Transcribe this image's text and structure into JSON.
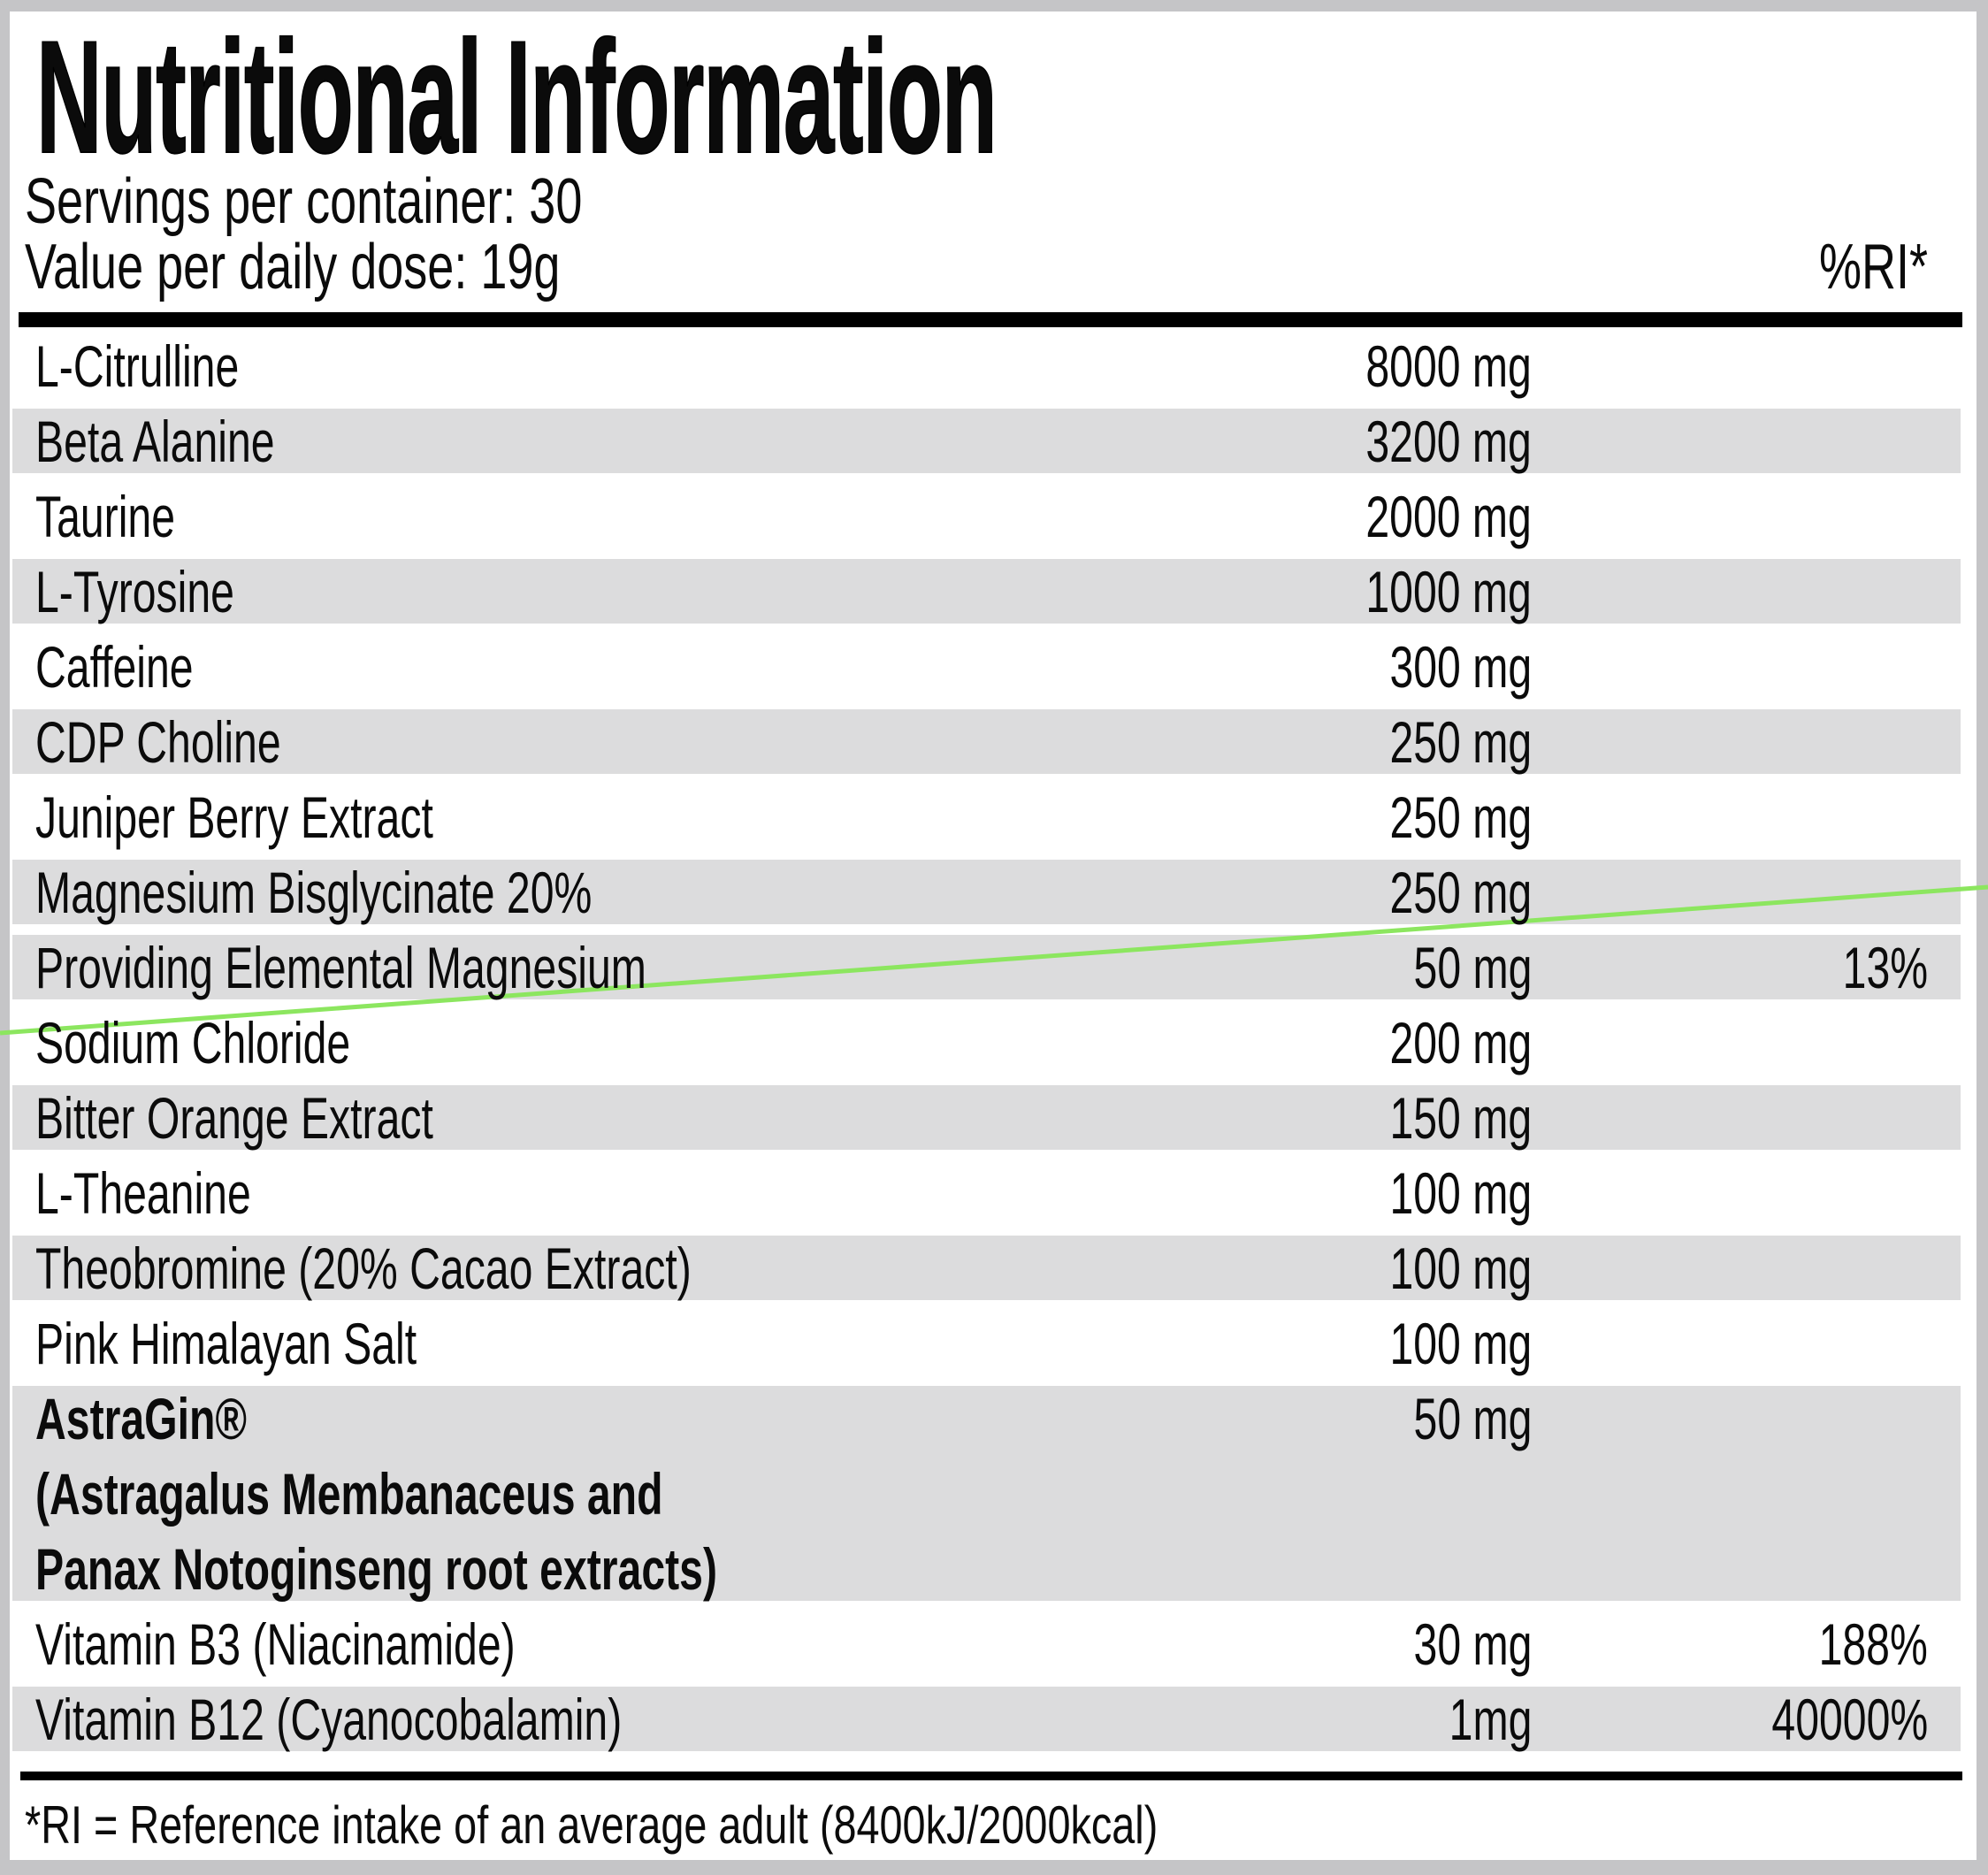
{
  "label": {
    "title": "Nutritional Information",
    "servings_line": "Servings per container: 30",
    "dose_line": "Value per daily dose: 19g",
    "ri_header": "%RI*",
    "footnote": "*RI = Reference intake of an average adult (8400kJ/2000kcal)",
    "colors": {
      "row_shade": "#dcdcdd",
      "frame_gray": "#c5c5c7",
      "accent_line_green": "#8ce65f",
      "text": "#0b0b0b",
      "divider": "#000000"
    },
    "rows": [
      {
        "name": "L-Citrulline",
        "amount": "8000 mg",
        "ri": "",
        "shaded": false
      },
      {
        "name": "Beta Alanine",
        "amount": "3200 mg",
        "ri": "",
        "shaded": true
      },
      {
        "name": "Taurine",
        "amount": "2000 mg",
        "ri": "",
        "shaded": false
      },
      {
        "name": "L-Tyrosine",
        "amount": "1000 mg",
        "ri": "",
        "shaded": true
      },
      {
        "name": "Caffeine",
        "amount": "300 mg",
        "ri": "",
        "shaded": false
      },
      {
        "name": "CDP Choline",
        "amount": "250 mg",
        "ri": "",
        "shaded": true
      },
      {
        "name": "Juniper Berry Extract",
        "amount": "250 mg",
        "ri": "",
        "shaded": false
      },
      {
        "name": "Magnesium Bisglycinate 20%",
        "amount": "250 mg",
        "ri": "",
        "shaded": true
      },
      {
        "name": "Providing Elemental Magnesium",
        "amount": "50 mg",
        "ri": "13%",
        "shaded": true
      },
      {
        "name": "Sodium Chloride",
        "amount": "200 mg",
        "ri": "",
        "shaded": false
      },
      {
        "name": "Bitter Orange Extract",
        "amount": "150 mg",
        "ri": "",
        "shaded": true
      },
      {
        "name": "L-Theanine",
        "amount": "100 mg",
        "ri": "",
        "shaded": false
      },
      {
        "name": "Theobromine (20% Cacao Extract)",
        "amount": "100 mg",
        "ri": "",
        "shaded": true
      },
      {
        "name": "Pink Himalayan Salt",
        "amount": "100 mg",
        "ri": "",
        "shaded": false
      },
      {
        "name": "AstraGin®",
        "amount": "50 mg",
        "ri": "",
        "shaded": true,
        "bold": true,
        "sub_lines": [
          "(Astragalus Membanaceus and",
          "Panax Notoginseng root extracts)"
        ]
      },
      {
        "name": "Vitamin B3 (Niacinamide)",
        "amount": "30 mg",
        "ri": "188%",
        "shaded": false
      },
      {
        "name": "Vitamin B12 (Cyanocobalamin)",
        "amount": "1mg",
        "ri": "40000%",
        "shaded": true
      }
    ]
  }
}
